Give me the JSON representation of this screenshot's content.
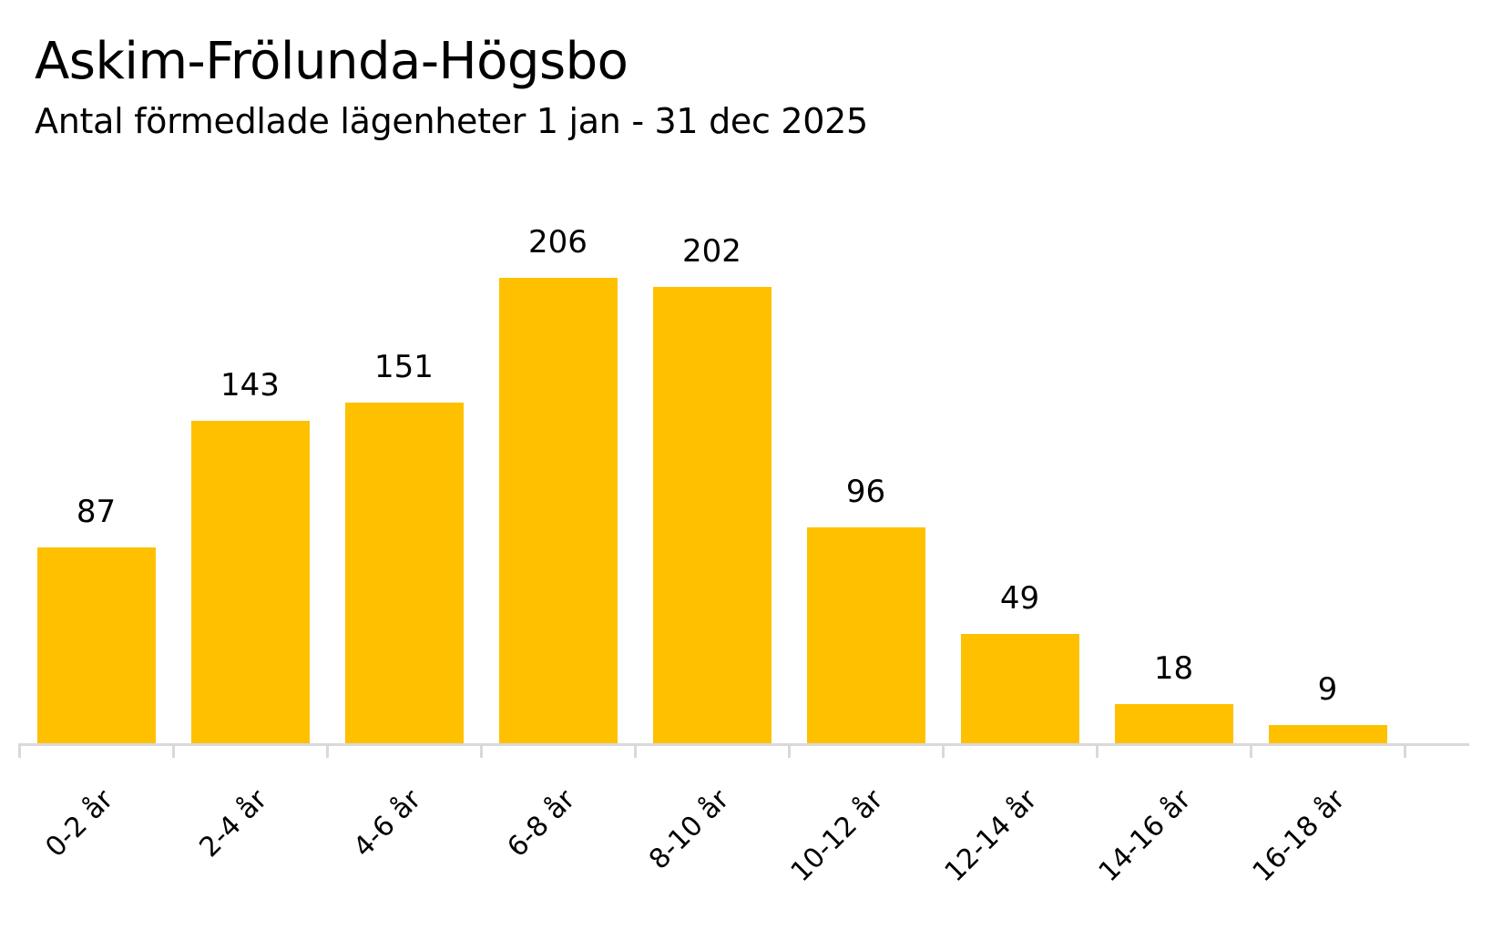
{
  "header": {
    "title": "Askim-Frölunda-Högsbo",
    "subtitle": "Antal förmedlade lägenheter 1 jan - 31 dec 2025"
  },
  "colors": {
    "bar": "#FFC000",
    "axis": "#D9D9D9",
    "text": "#000000"
  },
  "chart_data": {
    "type": "bar",
    "title": "Askim-Frölunda-Högsbo",
    "subtitle": "Antal förmedlade lägenheter 1 jan - 31 dec 2025",
    "categories": [
      "0-2 år",
      "2-4 år",
      "4-6 år",
      "6-8 år",
      "8-10 år",
      "10-12 år",
      "12-14 år",
      "14-16 år",
      "16-18 år"
    ],
    "values": [
      87,
      143,
      151,
      206,
      202,
      96,
      49,
      18,
      9
    ],
    "xlabel": "",
    "ylabel": "",
    "ylim": [
      0,
      248
    ],
    "grid": false,
    "legend": null,
    "data_labels": true
  }
}
